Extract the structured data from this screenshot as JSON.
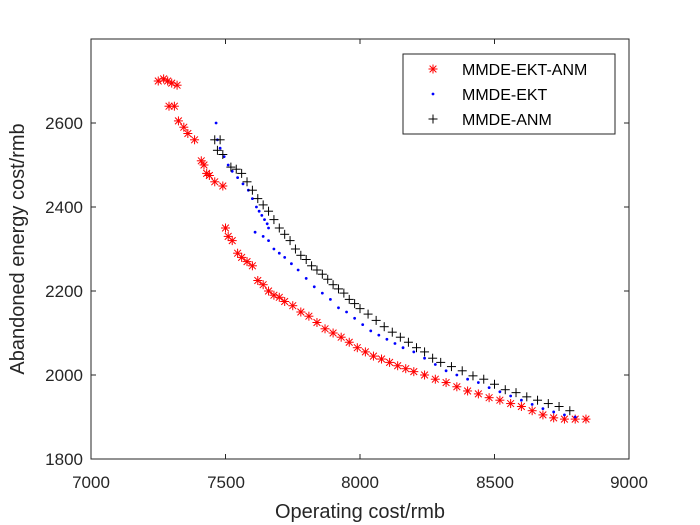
{
  "chart_data": {
    "type": "scatter",
    "title": "",
    "xlabel": "Operating cost/rmb",
    "ylabel": "Abandoned energy cost/rmb",
    "xlim": [
      7000,
      9000
    ],
    "ylim": [
      1800,
      2800
    ],
    "xticks": [
      "7000",
      "7500",
      "8000",
      "8500",
      "9000"
    ],
    "yticks": [
      "1800",
      "2000",
      "2200",
      "2400",
      "2600"
    ],
    "grid": false,
    "legend_position": "top-right",
    "series": [
      {
        "name": "MMDE-EKT-ANM",
        "marker": "asterisk",
        "color": "#ff0000",
        "points": [
          [
            7250,
            2700
          ],
          [
            7270,
            2705
          ],
          [
            7285,
            2700
          ],
          [
            7300,
            2695
          ],
          [
            7320,
            2690
          ],
          [
            7290,
            2640
          ],
          [
            7310,
            2640
          ],
          [
            7325,
            2605
          ],
          [
            7345,
            2590
          ],
          [
            7360,
            2575
          ],
          [
            7385,
            2560
          ],
          [
            7410,
            2510
          ],
          [
            7420,
            2500
          ],
          [
            7430,
            2480
          ],
          [
            7440,
            2475
          ],
          [
            7460,
            2460
          ],
          [
            7490,
            2450
          ],
          [
            7500,
            2350
          ],
          [
            7510,
            2330
          ],
          [
            7525,
            2320
          ],
          [
            7545,
            2290
          ],
          [
            7560,
            2280
          ],
          [
            7580,
            2270
          ],
          [
            7600,
            2260
          ],
          [
            7620,
            2225
          ],
          [
            7640,
            2215
          ],
          [
            7660,
            2200
          ],
          [
            7680,
            2190
          ],
          [
            7700,
            2185
          ],
          [
            7720,
            2175
          ],
          [
            7750,
            2165
          ],
          [
            7780,
            2150
          ],
          [
            7810,
            2140
          ],
          [
            7840,
            2125
          ],
          [
            7870,
            2110
          ],
          [
            7900,
            2100
          ],
          [
            7930,
            2090
          ],
          [
            7960,
            2078
          ],
          [
            7990,
            2065
          ],
          [
            8020,
            2055
          ],
          [
            8050,
            2045
          ],
          [
            8080,
            2038
          ],
          [
            8110,
            2030
          ],
          [
            8140,
            2022
          ],
          [
            8170,
            2015
          ],
          [
            8200,
            2008
          ],
          [
            8240,
            2000
          ],
          [
            8280,
            1990
          ],
          [
            8320,
            1982
          ],
          [
            8360,
            1972
          ],
          [
            8400,
            1962
          ],
          [
            8440,
            1955
          ],
          [
            8480,
            1946
          ],
          [
            8520,
            1940
          ],
          [
            8560,
            1932
          ],
          [
            8600,
            1925
          ],
          [
            8640,
            1915
          ],
          [
            8680,
            1905
          ],
          [
            8720,
            1898
          ],
          [
            8760,
            1895
          ],
          [
            8800,
            1895
          ],
          [
            8840,
            1895
          ]
        ]
      },
      {
        "name": "MMDE-EKT",
        "marker": "dot",
        "color": "#0000ff",
        "points": [
          [
            7465,
            2600
          ],
          [
            7470,
            2560
          ],
          [
            7480,
            2540
          ],
          [
            7495,
            2520
          ],
          [
            7510,
            2500
          ],
          [
            7525,
            2485
          ],
          [
            7545,
            2470
          ],
          [
            7565,
            2455
          ],
          [
            7585,
            2440
          ],
          [
            7600,
            2420
          ],
          [
            7615,
            2400
          ],
          [
            7625,
            2390
          ],
          [
            7635,
            2380
          ],
          [
            7645,
            2370
          ],
          [
            7655,
            2360
          ],
          [
            7660,
            2350
          ],
          [
            7610,
            2340
          ],
          [
            7640,
            2330
          ],
          [
            7660,
            2320
          ],
          [
            7680,
            2300
          ],
          [
            7700,
            2290
          ],
          [
            7720,
            2280
          ],
          [
            7745,
            2265
          ],
          [
            7770,
            2250
          ],
          [
            7800,
            2230
          ],
          [
            7830,
            2210
          ],
          [
            7860,
            2195
          ],
          [
            7890,
            2180
          ],
          [
            7920,
            2160
          ],
          [
            7950,
            2150
          ],
          [
            7980,
            2135
          ],
          [
            8010,
            2120
          ],
          [
            8040,
            2105
          ],
          [
            8070,
            2095
          ],
          [
            8100,
            2085
          ],
          [
            8130,
            2075
          ],
          [
            8160,
            2065
          ],
          [
            8200,
            2055
          ],
          [
            8240,
            2040
          ],
          [
            8280,
            2025
          ],
          [
            8320,
            2010
          ],
          [
            8360,
            2000
          ],
          [
            8400,
            1990
          ],
          [
            8440,
            1982
          ],
          [
            8480,
            1970
          ],
          [
            8520,
            1960
          ],
          [
            8560,
            1950
          ],
          [
            8600,
            1940
          ],
          [
            8640,
            1930
          ],
          [
            8680,
            1920
          ],
          [
            8720,
            1912
          ],
          [
            8760,
            1905
          ],
          [
            8800,
            1900
          ]
        ]
      },
      {
        "name": "MMDE-ANM",
        "marker": "plus",
        "color": "#000000",
        "points": [
          [
            7460,
            2560
          ],
          [
            7480,
            2560
          ],
          [
            7470,
            2535
          ],
          [
            7490,
            2525
          ],
          [
            7520,
            2495
          ],
          [
            7540,
            2490
          ],
          [
            7560,
            2480
          ],
          [
            7580,
            2460
          ],
          [
            7600,
            2440
          ],
          [
            7620,
            2420
          ],
          [
            7640,
            2405
          ],
          [
            7660,
            2390
          ],
          [
            7680,
            2370
          ],
          [
            7700,
            2350
          ],
          [
            7720,
            2335
          ],
          [
            7740,
            2320
          ],
          [
            7760,
            2300
          ],
          [
            7780,
            2285
          ],
          [
            7800,
            2275
          ],
          [
            7820,
            2260
          ],
          [
            7840,
            2250
          ],
          [
            7860,
            2240
          ],
          [
            7880,
            2228
          ],
          [
            7900,
            2215
          ],
          [
            7920,
            2205
          ],
          [
            7940,
            2195
          ],
          [
            7960,
            2180
          ],
          [
            7980,
            2170
          ],
          [
            8000,
            2158
          ],
          [
            8030,
            2145
          ],
          [
            8060,
            2130
          ],
          [
            8090,
            2115
          ],
          [
            8120,
            2102
          ],
          [
            8150,
            2090
          ],
          [
            8180,
            2078
          ],
          [
            8210,
            2065
          ],
          [
            8240,
            2055
          ],
          [
            8270,
            2040
          ],
          [
            8300,
            2030
          ],
          [
            8340,
            2020
          ],
          [
            8380,
            2010
          ],
          [
            8420,
            1998
          ],
          [
            8460,
            1990
          ],
          [
            8500,
            1978
          ],
          [
            8540,
            1965
          ],
          [
            8580,
            1958
          ],
          [
            8620,
            1948
          ],
          [
            8660,
            1940
          ],
          [
            8700,
            1932
          ],
          [
            8740,
            1925
          ],
          [
            8780,
            1915
          ]
        ]
      }
    ]
  }
}
